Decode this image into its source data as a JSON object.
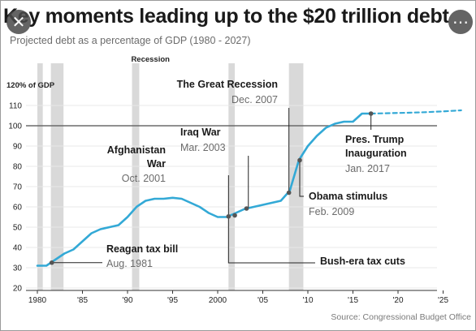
{
  "title": "Key moments leading up to the $20 trillion debt",
  "subtitle": "Projected debt as a percentage of GDP (1980 - 2027)",
  "close_icon": "✕",
  "menu_icon": "⋯",
  "chart_data": {
    "type": "line",
    "title": "Key moments leading up to the $20 trillion debt",
    "subtitle": "Projected debt as a percentage of GDP (1980 - 2027)",
    "ylabel": "120% of GDP",
    "xlim": [
      1980,
      2027
    ],
    "ylim": [
      20,
      120
    ],
    "x_ticks": [
      1980,
      1985,
      1990,
      1995,
      2000,
      2005,
      2010,
      2015,
      2020,
      2025
    ],
    "x_tick_labels": [
      "1980",
      "'85",
      "'90",
      "'95",
      "2000",
      "'05",
      "'10",
      "'15",
      "'20",
      "'25"
    ],
    "y_ticks": [
      20,
      30,
      40,
      50,
      60,
      70,
      80,
      90,
      100,
      110
    ],
    "y_tick_labels": [
      "20",
      "30",
      "40",
      "50",
      "60",
      "70",
      "80",
      "90",
      "100",
      "110"
    ],
    "top_label": "120% of GDP",
    "reference_line": 100,
    "recession_label": "Recession",
    "recessions": [
      [
        1980.0,
        1980.6
      ],
      [
        1981.5,
        1982.9
      ],
      [
        1990.5,
        1991.3
      ],
      [
        2001.2,
        2001.9
      ],
      [
        2007.9,
        2009.5
      ]
    ],
    "series": [
      {
        "style": "solid",
        "color": "#33a9d6",
        "x": [
          1980,
          1981,
          1982,
          1983,
          1984,
          1985,
          1986,
          1987,
          1988,
          1989,
          1990,
          1991,
          1992,
          1993,
          1994,
          1995,
          1996,
          1997,
          1998,
          1999,
          2000,
          2001,
          2002,
          2003,
          2004,
          2005,
          2006,
          2007,
          2008,
          2009,
          2010,
          2011,
          2012,
          2013,
          2014,
          2015,
          2016,
          2017
        ],
        "y": [
          31,
          31,
          34,
          37,
          39,
          43,
          47,
          49,
          50,
          51,
          55,
          60,
          63,
          64,
          64,
          64.5,
          64,
          62,
          60,
          57,
          55,
          55,
          57,
          59,
          60,
          61,
          62,
          63,
          68,
          83,
          90,
          95,
          99,
          101,
          102,
          102,
          106,
          106
        ]
      },
      {
        "style": "dashed",
        "color": "#33a9d6",
        "x": [
          2017,
          2019,
          2021,
          2023,
          2025,
          2027
        ],
        "y": [
          106,
          106.2,
          106.4,
          106.7,
          107.1,
          107.6
        ]
      }
    ],
    "annotations": [
      {
        "label": "Reagan tax bill",
        "date": "Aug. 1981"
      },
      {
        "label": "Afghanistan War",
        "date": "Oct. 2001"
      },
      {
        "label": "Iraq War",
        "date": "Mar. 2003"
      },
      {
        "label": "The Great Recession",
        "date": "Dec. 2007"
      },
      {
        "label": "Bush-era tax cuts",
        "date": ""
      },
      {
        "label": "Obama stimulus",
        "date": "Feb. 2009"
      },
      {
        "label": "Pres. Trump Inauguration",
        "date": "Jan. 2017"
      }
    ],
    "source": "Source: Congressional Budget Office"
  }
}
